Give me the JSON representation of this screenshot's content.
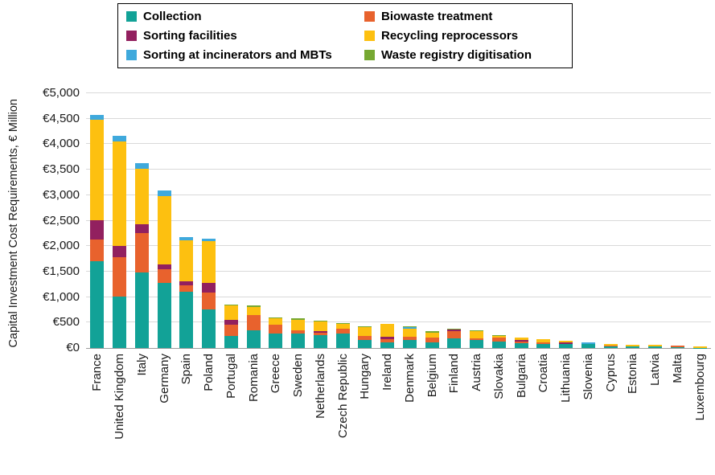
{
  "chart_data": {
    "type": "bar",
    "stacked": true,
    "title": "",
    "xlabel": "",
    "ylabel": "Capital Investment Cost Requirements, € Million",
    "ylim": [
      0,
      5000
    ],
    "grid": true,
    "grid_color": "#d9d9d9",
    "legend_position": "top",
    "yticks": [
      {
        "value": 0,
        "label": "€0"
      },
      {
        "value": 500,
        "label": "€500"
      },
      {
        "value": 1000,
        "label": "€1,000"
      },
      {
        "value": 1500,
        "label": "€1,500"
      },
      {
        "value": 2000,
        "label": "€2,000"
      },
      {
        "value": 2500,
        "label": "€2,500"
      },
      {
        "value": 3000,
        "label": "€3,000"
      },
      {
        "value": 3500,
        "label": "€3,500"
      },
      {
        "value": 4000,
        "label": "€4,000"
      },
      {
        "value": 4500,
        "label": "€4,500"
      },
      {
        "value": 5000,
        "label": "€5,000"
      }
    ],
    "categories": [
      "France",
      "United Kingdom",
      "Italy",
      "Germany",
      "Spain",
      "Poland",
      "Portugal",
      "Romania",
      "Greece",
      "Sweden",
      "Netherlands",
      "Czech Republic",
      "Hungary",
      "Ireland",
      "Denmark",
      "Belgium",
      "Finland",
      "Austria",
      "Slovakia",
      "Bulgaria",
      "Croatia",
      "Lithuania",
      "Slovenia",
      "Cyprus",
      "Estonia",
      "Latvia",
      "Malta",
      "Luxembourg"
    ],
    "series": [
      {
        "name": "Collection",
        "color": "#12a297",
        "values": [
          1700,
          1015,
          1480,
          1280,
          1105,
          765,
          240,
          340,
          290,
          280,
          250,
          290,
          160,
          110,
          160,
          105,
          185,
          155,
          120,
          95,
          80,
          85,
          85,
          25,
          35,
          30,
          10,
          5
        ]
      },
      {
        "name": "Biowaste treatment",
        "color": "#e8622d",
        "values": [
          430,
          765,
          780,
          260,
          120,
          320,
          225,
          310,
          165,
          65,
          45,
          85,
          70,
          65,
          60,
          105,
          140,
          40,
          85,
          30,
          25,
          0,
          0,
          25,
          0,
          0,
          30,
          0
        ]
      },
      {
        "name": "Sorting facilities",
        "color": "#92205f",
        "values": [
          385,
          220,
          165,
          100,
          80,
          195,
          80,
          0,
          0,
          0,
          35,
          0,
          0,
          50,
          0,
          0,
          35,
          0,
          0,
          30,
          0,
          20,
          0,
          0,
          0,
          0,
          0,
          0
        ]
      },
      {
        "name": "Recycling reprocessors",
        "color": "#fdc010",
        "values": [
          1960,
          2050,
          1090,
          1340,
          810,
          815,
          295,
          155,
          125,
          215,
          190,
          105,
          180,
          255,
          155,
          95,
          0,
          140,
          30,
          55,
          70,
          40,
          0,
          30,
          35,
          30,
          0,
          20
        ]
      },
      {
        "name": "Sorting at incinerators and MBTs",
        "color": "#3fa9dc",
        "values": [
          105,
          110,
          115,
          120,
          65,
          55,
          0,
          0,
          0,
          0,
          0,
          0,
          0,
          0,
          35,
          0,
          0,
          0,
          0,
          0,
          0,
          0,
          20,
          0,
          0,
          0,
          0,
          0
        ]
      },
      {
        "name": "Waste registry digitisation",
        "color": "#76a832",
        "values": [
          0,
          0,
          0,
          0,
          0,
          0,
          20,
          25,
          20,
          20,
          20,
          10,
          15,
          0,
          20,
          25,
          20,
          15,
          15,
          0,
          0,
          0,
          0,
          0,
          0,
          0,
          0,
          0
        ]
      }
    ]
  }
}
